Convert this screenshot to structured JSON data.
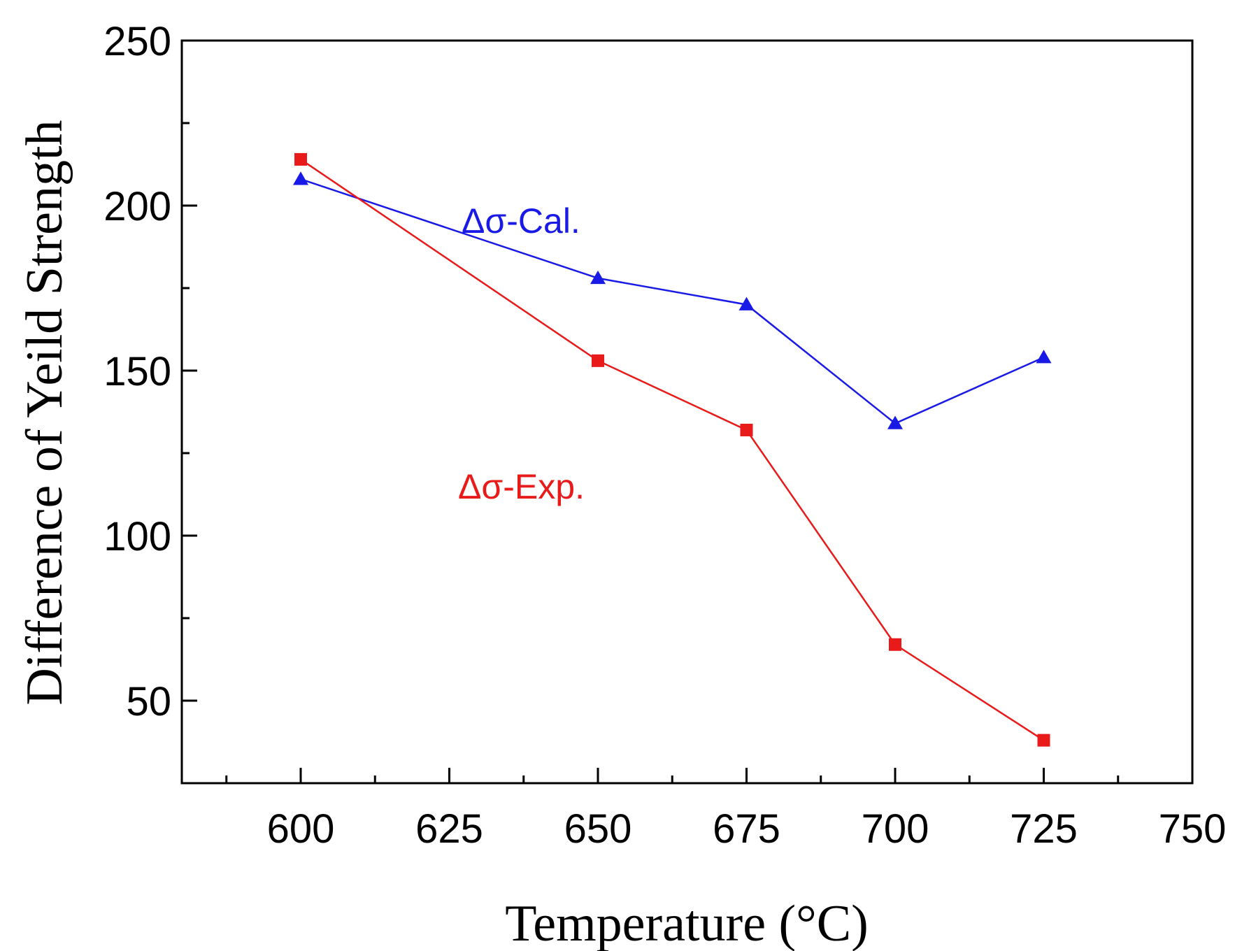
{
  "chart_data": {
    "type": "line",
    "title": "",
    "xlabel": "Temperature (°C)",
    "ylabel": "Difference of Yeild Strength",
    "xlim": [
      580,
      750
    ],
    "ylim": [
      25,
      250
    ],
    "xticks": [
      600,
      625,
      650,
      675,
      700,
      725,
      750
    ],
    "yticks": [
      50,
      100,
      150,
      200,
      250
    ],
    "x_minor_step": 12.5,
    "y_minor_step": 25,
    "grid": false,
    "series": [
      {
        "name": "Δσ-Cal.",
        "marker": "triangle",
        "color": "#1a1ae6",
        "x": [
          600,
          650,
          675,
          700,
          725
        ],
        "values": [
          208,
          178,
          170,
          134,
          154
        ]
      },
      {
        "name": "Δσ-Exp.",
        "marker": "square",
        "color": "#e81a1a",
        "x": [
          600,
          650,
          675,
          700,
          725
        ],
        "values": [
          214,
          153,
          132,
          67,
          38
        ]
      }
    ]
  }
}
